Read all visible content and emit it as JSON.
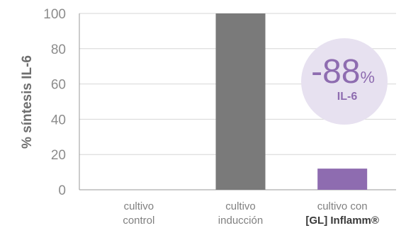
{
  "chart_data": {
    "type": "bar",
    "ylabel": "% síntesis IL-6",
    "ylim": [
      0,
      100
    ],
    "yticks": [
      0,
      20,
      40,
      60,
      80,
      100
    ],
    "grid": true,
    "categories": [
      {
        "line1": "cultivo",
        "line2": "control"
      },
      {
        "line1": "cultivo",
        "line2": "inducción"
      },
      {
        "line1": "cultivo con",
        "line2": "[GL] Inflamm®"
      }
    ],
    "values": [
      0,
      100,
      12
    ],
    "bar_colors": [
      "#7a7a7a",
      "#7a7a7a",
      "#8e6cb0"
    ],
    "badge": {
      "value": "-88",
      "unit": "%",
      "label": "IL-6",
      "fill": "#e7e1f0",
      "text_color": "#8e6cb0"
    }
  },
  "colors": {
    "grid": "#d6d6d6",
    "axis": "#9a9a9a",
    "tick_text": "#8c8c8c"
  }
}
